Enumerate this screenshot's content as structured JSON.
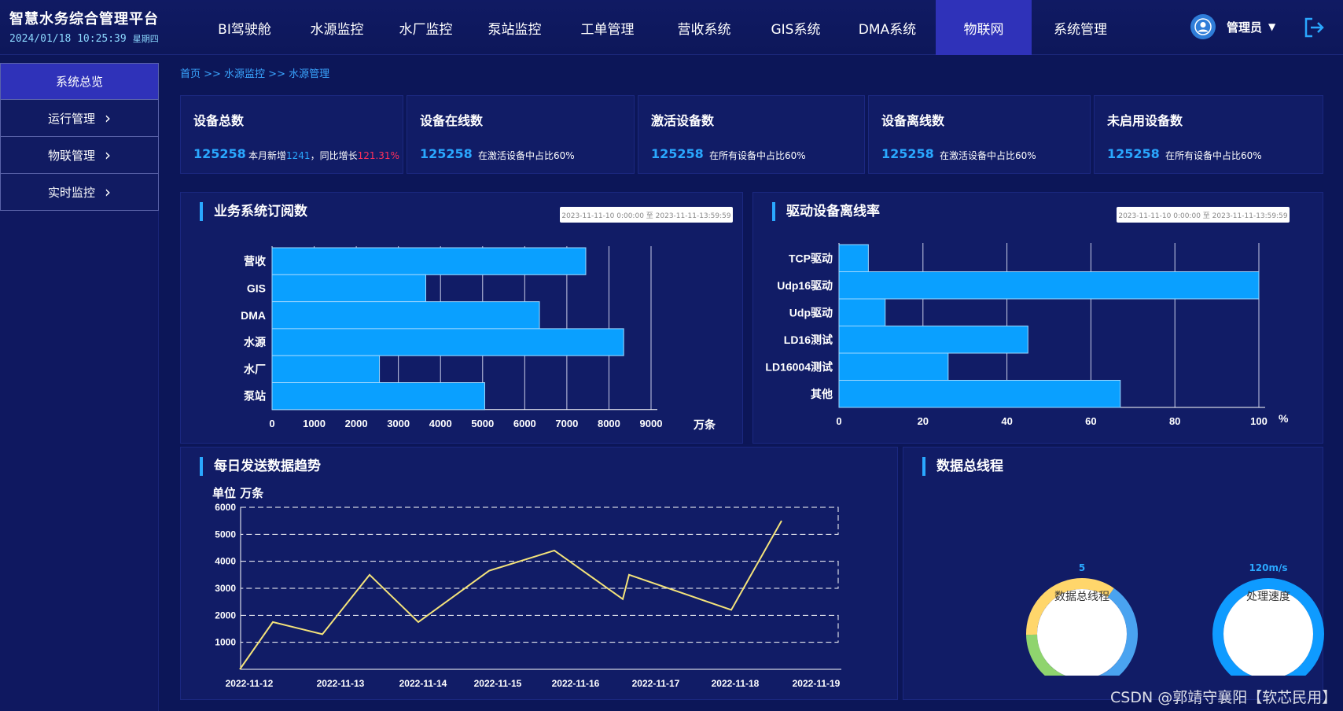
{
  "header": {
    "title": "智慧水务综合管理平台",
    "datetime": "2024/01/18 10:25:39",
    "weekday": "星期四",
    "nav": [
      "BI驾驶舱",
      "水源监控",
      "水厂监控",
      "泵站监控",
      "工单管理",
      "营收系统",
      "GIS系统",
      "DMA系统",
      "物联网",
      "系统管理"
    ],
    "active_nav": "物联网",
    "user": "管理员"
  },
  "sidebar": {
    "items": [
      {
        "label": "系统总览",
        "active": true,
        "expandable": false
      },
      {
        "label": "运行管理",
        "active": false,
        "expandable": true
      },
      {
        "label": "物联管理",
        "active": false,
        "expandable": true
      },
      {
        "label": "实时监控",
        "active": false,
        "expandable": true
      }
    ]
  },
  "breadcrumb": "首页 >> 水源监控 >> 水源管理",
  "stats": [
    {
      "title": "设备总数",
      "value": "125258",
      "desc_prefix": "本月新增",
      "desc_new": "1241",
      "desc_mid": "，同比增长",
      "desc_growth": "121.31%"
    },
    {
      "title": "设备在线数",
      "value": "125258",
      "desc": "在激活设备中占比60%"
    },
    {
      "title": "激活设备数",
      "value": "125258",
      "desc": "在所有设备中占比60%"
    },
    {
      "title": "设备离线数",
      "value": "125258",
      "desc": "在激活设备中占比60%"
    },
    {
      "title": "未启用设备数",
      "value": "125258",
      "desc": "在所有设备中占比60%"
    }
  ],
  "panels": {
    "subscription": {
      "title": "业务系统订阅数",
      "date_range": "2023-11-11-10  0:00:00  至  2023-11-11-13:59:59"
    },
    "offline": {
      "title": "驱动设备离线率",
      "date_range": "2023-11-11-10  0:00:00  至  2023-11-11-13:59:59"
    },
    "trend": {
      "title": "每日发送数据趋势",
      "unit": "单位  万条"
    },
    "bus": {
      "title": "数据总线程",
      "gauges": [
        {
          "value": "5",
          "label": "数据总线程",
          "colors": [
            "#4aa3f0",
            "#8fd46e",
            "#ffd66b"
          ],
          "portions": [
            0.35,
            0.3,
            0.35
          ]
        },
        {
          "value": "120m/s",
          "label": "处理速度",
          "colors": [
            "#0f9bff"
          ],
          "portions": [
            1.0
          ]
        }
      ]
    }
  },
  "chart_data": [
    {
      "type": "bar",
      "orientation": "horizontal",
      "categories": [
        "营收",
        "GIS",
        "DMA",
        "水源",
        "水厂",
        "泵站"
      ],
      "values": [
        7450,
        3650,
        6350,
        8350,
        2550,
        5050
      ],
      "xlim": [
        0,
        9000
      ],
      "xticks": [
        0,
        1000,
        2000,
        3000,
        4000,
        5000,
        6000,
        7000,
        8000,
        9000
      ],
      "unit_label": "万条",
      "color": "#0aa0ff"
    },
    {
      "type": "bar",
      "orientation": "horizontal",
      "categories": [
        "TCP驱动",
        "Udp16驱动",
        "Udp驱动",
        "LD16测试",
        "LD16004测试",
        "其他"
      ],
      "values": [
        7,
        100,
        11,
        45,
        26,
        67
      ],
      "xlim": [
        0,
        100
      ],
      "xticks": [
        0,
        20,
        40,
        60,
        80,
        100
      ],
      "unit_label": "%",
      "color": "#0aa0ff"
    },
    {
      "type": "line",
      "x": [
        "2022-11-12",
        "2022-11-13",
        "2022-11-14",
        "2022-11-15",
        "2022-11-16",
        "2022-11-17",
        "2022-11-18",
        "2022-11-19"
      ],
      "points": [
        {
          "x": "2022-11-12",
          "y": 0
        },
        {
          "x": "2022-11-12",
          "y": 1750
        },
        {
          "x": "2022-11-13",
          "y": 1300
        },
        {
          "x": "2022-11-13",
          "y": 3500
        },
        {
          "x": "2022-11-14",
          "y": 1750
        },
        {
          "x": "2022-11-15",
          "y": 3650
        },
        {
          "x": "2022-11-16",
          "y": 4400
        },
        {
          "x": "2022-11-17",
          "y": 2600
        },
        {
          "x": "2022-11-17",
          "y": 3500
        },
        {
          "x": "2022-11-18",
          "y": 2200
        },
        {
          "x": "2022-11-19",
          "y": 5500
        }
      ],
      "ylim": [
        0,
        6000
      ],
      "yticks": [
        1000,
        2000,
        3000,
        4000,
        5000,
        6000
      ],
      "color": "#f4e37a"
    }
  ],
  "watermark": "CSDN @郭靖守襄阳【软芯民用】"
}
